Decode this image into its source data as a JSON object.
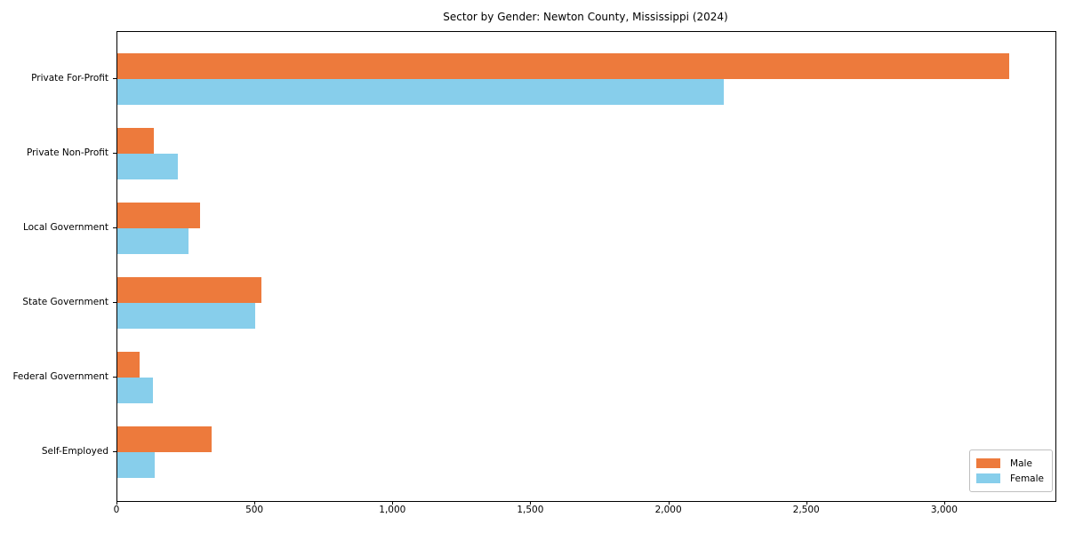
{
  "chart_data": {
    "type": "bar",
    "orientation": "horizontal",
    "title": "Sector by Gender: Newton County, Mississippi (2024)",
    "categories": [
      "Private For-Profit",
      "Private Non-Profit",
      "Local Government",
      "State Government",
      "Federal Government",
      "Self-Employed"
    ],
    "series": [
      {
        "name": "Male",
        "color": "#ED7A3C",
        "values": [
          3233,
          132,
          301,
          523,
          82,
          343
        ]
      },
      {
        "name": "Female",
        "color": "#87CEEB",
        "values": [
          2197,
          220,
          258,
          498,
          130,
          136
        ]
      }
    ],
    "xlabel": "",
    "ylabel": "",
    "xlim": [
      0,
      3400
    ],
    "xticks": [
      {
        "value": 0,
        "label": "0"
      },
      {
        "value": 500,
        "label": "500"
      },
      {
        "value": 1000,
        "label": "1,000"
      },
      {
        "value": 1500,
        "label": "1,500"
      },
      {
        "value": 2000,
        "label": "2,000"
      },
      {
        "value": 2500,
        "label": "2,500"
      },
      {
        "value": 3000,
        "label": "3,000"
      }
    ],
    "grid": false,
    "legend": {
      "position": "lower right",
      "entries": [
        "Male",
        "Female"
      ]
    },
    "colors": {
      "male": "#ED7A3C",
      "female": "#87CEEB",
      "spine": "#000000",
      "background": "#ffffff"
    }
  }
}
